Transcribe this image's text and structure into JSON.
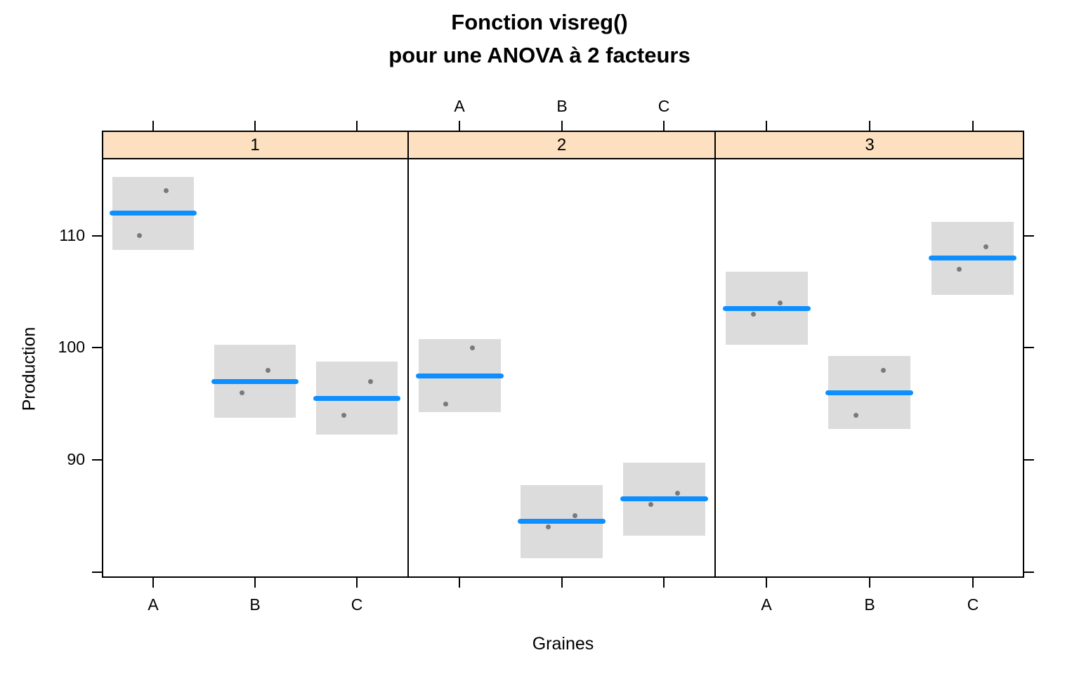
{
  "title": {
    "line1": "Fonction visreg()",
    "line2": "pour une ANOVA à 2 facteurs"
  },
  "axes": {
    "y_label": "Production",
    "x_label": "Graines"
  },
  "colors": {
    "fit_line": "#0D8FFF",
    "confidence_band": "#DCDCDC",
    "point": "#7A7A7A",
    "strip_background": "#FCE0BF",
    "frame": "#000000",
    "background": "#FFFFFF"
  },
  "chart_data": {
    "type": "scatter",
    "subtype": "visreg-trellis-anova",
    "title": "Fonction visreg()\npour une ANOVA à 2 facteurs",
    "xlabel": "Graines",
    "ylabel": "Production",
    "ylim": [
      79.6,
      116.8
    ],
    "yticks": [
      80,
      90,
      100,
      110
    ],
    "ytick_labels": [
      "",
      "90",
      "100",
      "110"
    ],
    "categories": [
      "A",
      "B",
      "C"
    ],
    "grid": false,
    "legend": "none",
    "band_halfwidth": 0.4,
    "point_jitter": [
      -0.13,
      0.13
    ],
    "panels": [
      {
        "label": "1",
        "category_labels_position": "bottom",
        "groups": [
          {
            "category": "A",
            "fit": 112.0,
            "ci": [
              108.75,
              115.25
            ],
            "points": [
              110,
              114
            ]
          },
          {
            "category": "B",
            "fit": 97.0,
            "ci": [
              93.75,
              100.25
            ],
            "points": [
              96,
              98
            ]
          },
          {
            "category": "C",
            "fit": 95.5,
            "ci": [
              92.25,
              98.75
            ],
            "points": [
              94,
              97
            ]
          }
        ]
      },
      {
        "label": "2",
        "category_labels_position": "top",
        "groups": [
          {
            "category": "A",
            "fit": 97.5,
            "ci": [
              94.25,
              100.75
            ],
            "points": [
              95,
              100
            ]
          },
          {
            "category": "B",
            "fit": 84.5,
            "ci": [
              81.25,
              87.75
            ],
            "points": [
              84,
              85
            ]
          },
          {
            "category": "C",
            "fit": 86.5,
            "ci": [
              83.25,
              89.75
            ],
            "points": [
              86,
              87
            ]
          }
        ]
      },
      {
        "label": "3",
        "category_labels_position": "bottom",
        "groups": [
          {
            "category": "A",
            "fit": 103.5,
            "ci": [
              100.25,
              106.75
            ],
            "points": [
              103,
              104
            ]
          },
          {
            "category": "B",
            "fit": 96.0,
            "ci": [
              92.75,
              99.25
            ],
            "points": [
              94,
              98
            ]
          },
          {
            "category": "C",
            "fit": 108.0,
            "ci": [
              104.75,
              111.25
            ],
            "points": [
              107,
              109
            ]
          }
        ]
      }
    ]
  }
}
